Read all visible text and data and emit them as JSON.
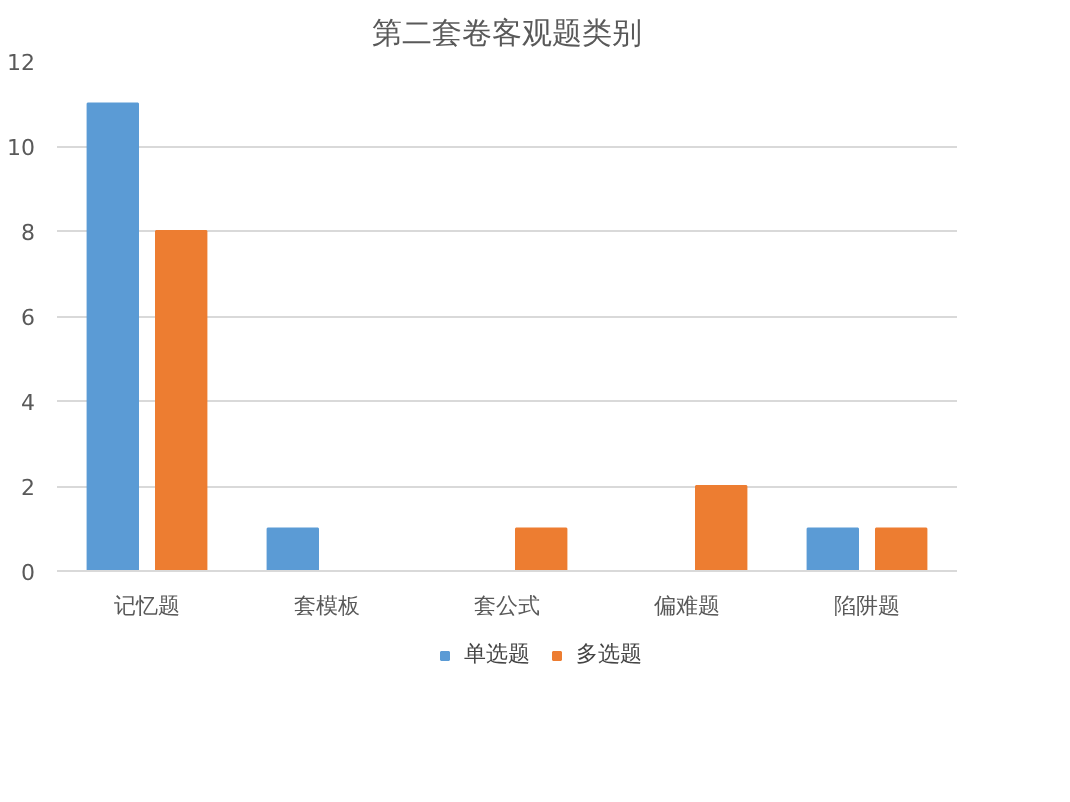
{
  "chart_data": {
    "type": "bar",
    "title": "第二套卷客观题类别",
    "categories": [
      "记忆题",
      "套模板",
      "套公式",
      "偏难题",
      "陷阱题"
    ],
    "series": [
      {
        "name": "单选题",
        "color": "#5b9bd5",
        "values": [
          11,
          1,
          0,
          0,
          1
        ]
      },
      {
        "name": "多选题",
        "color": "#ed7d31",
        "values": [
          8,
          0,
          1,
          2,
          1
        ]
      }
    ],
    "ylim": [
      0,
      12
    ],
    "yticks": [
      0,
      2,
      4,
      6,
      8,
      10,
      12
    ],
    "grid": "y",
    "legend": "bottom"
  }
}
